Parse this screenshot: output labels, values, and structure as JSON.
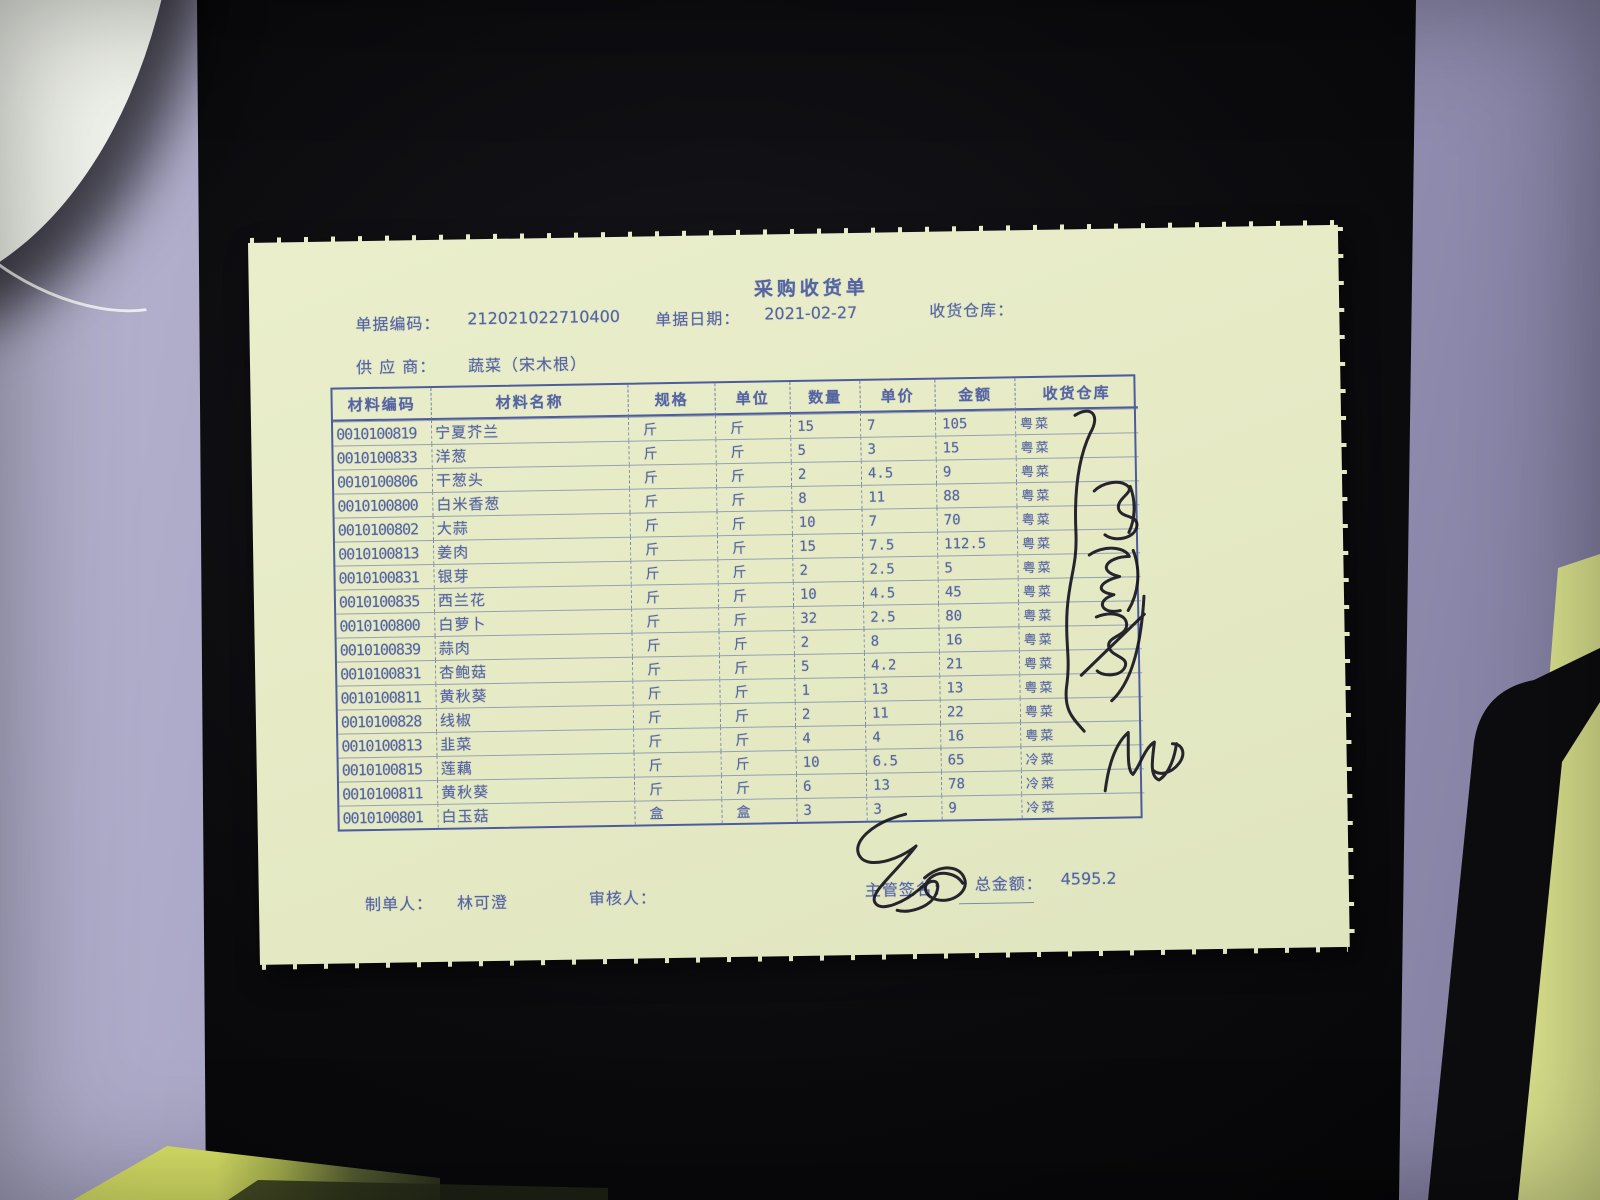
{
  "document": {
    "title": "采购收货单",
    "fields": {
      "doc_no_label": "单据编码：",
      "doc_no": "212021022710400",
      "date_label": "单据日期：",
      "date": "2021-02-27",
      "warehouse_label": "收货仓库：",
      "supplier_label": "供 应 商：",
      "supplier": "蔬菜（宋木根）"
    },
    "table": {
      "headers": [
        "材料编码",
        "材料名称",
        "规格",
        "单位",
        "数量",
        "单价",
        "金额",
        "收货仓库"
      ],
      "rows": [
        [
          "0010100819",
          "宁夏芥兰",
          "斤",
          "斤",
          "15",
          "7",
          "105",
          "粤菜"
        ],
        [
          "0010100833",
          "洋葱",
          "斤",
          "斤",
          "5",
          "3",
          "15",
          "粤菜"
        ],
        [
          "0010100806",
          "干葱头",
          "斤",
          "斤",
          "2",
          "4.5",
          "9",
          "粤菜"
        ],
        [
          "0010100800",
          "白米香葱",
          "斤",
          "斤",
          "8",
          "11",
          "88",
          "粤菜"
        ],
        [
          "0010100802",
          "大蒜",
          "斤",
          "斤",
          "10",
          "7",
          "70",
          "粤菜"
        ],
        [
          "0010100813",
          "姜肉",
          "斤",
          "斤",
          "15",
          "7.5",
          "112.5",
          "粤菜"
        ],
        [
          "0010100831",
          "银芽",
          "斤",
          "斤",
          "2",
          "2.5",
          "5",
          "粤菜"
        ],
        [
          "0010100835",
          "西兰花",
          "斤",
          "斤",
          "10",
          "4.5",
          "45",
          "粤菜"
        ],
        [
          "0010100800",
          "白萝卜",
          "斤",
          "斤",
          "32",
          "2.5",
          "80",
          "粤菜"
        ],
        [
          "0010100839",
          "蒜肉",
          "斤",
          "斤",
          "2",
          "8",
          "16",
          "粤菜"
        ],
        [
          "0010100831",
          "杏鲍菇",
          "斤",
          "斤",
          "5",
          "4.2",
          "21",
          "粤菜"
        ],
        [
          "0010100811",
          "黄秋葵",
          "斤",
          "斤",
          "1",
          "13",
          "13",
          "粤菜"
        ],
        [
          "0010100828",
          "线椒",
          "斤",
          "斤",
          "2",
          "11",
          "22",
          "粤菜"
        ],
        [
          "0010100813",
          "韭菜",
          "斤",
          "斤",
          "4",
          "4",
          "16",
          "粤菜"
        ],
        [
          "0010100815",
          "莲藕",
          "斤",
          "斤",
          "10",
          "6.5",
          "65",
          "冷菜"
        ],
        [
          "0010100811",
          "黄秋葵",
          "斤",
          "斤",
          "6",
          "13",
          "78",
          "冷菜"
        ],
        [
          "0010100801",
          "白玉菇",
          "盒",
          "盒",
          "3",
          "3",
          "9",
          "冷菜"
        ]
      ]
    },
    "footer": {
      "maker_label": "制单人：",
      "maker": "林可澄",
      "auditor_label": "审核人：",
      "manager_label": "主管签名：",
      "total_label": "总金额：",
      "total": "4595.2"
    },
    "annotations": {
      "warehouse_brace": "handwritten-brace-stroke",
      "side_signature": "handwritten-cursive-signature",
      "cold_dish_mark": "handwritten-cursive-mark",
      "manager_signature": "handwritten-cursive-signature"
    },
    "colors": {
      "paper": "#e7ecc9",
      "ink": "#5564a2",
      "handwriting": "#16141f",
      "desk_mat": "#0b0b0e",
      "desk_surface": "#a8a5c6",
      "bowl": "#edf1e8",
      "side_paper": "#dde58f",
      "corner_paper": "#dbe468"
    }
  }
}
